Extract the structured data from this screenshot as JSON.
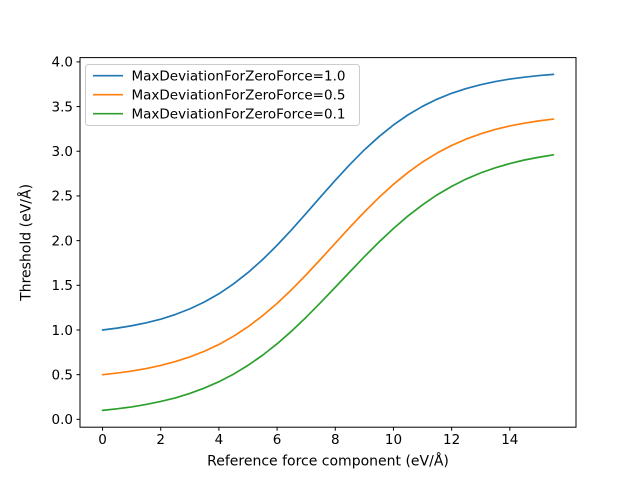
{
  "figure": {
    "background": "#ffffff",
    "spine_color": "#000000",
    "tick_color": "#000000"
  },
  "chart_data": {
    "type": "line",
    "title": "",
    "xlabel": "Reference force component (eV/Å)",
    "ylabel": "Threshold (eV/Å)",
    "xlim": [
      -0.775,
      16.275
    ],
    "ylim": [
      -0.088,
      4.048
    ],
    "grid": false,
    "legend_position": "upper left",
    "x_ticks": {
      "values": [
        0,
        2,
        4,
        6,
        8,
        10,
        12,
        14
      ],
      "labels": [
        "0",
        "2",
        "4",
        "6",
        "8",
        "10",
        "12",
        "14"
      ]
    },
    "y_ticks": {
      "values": [
        0.0,
        0.5,
        1.0,
        1.5,
        2.0,
        2.5,
        3.0,
        3.5,
        4.0
      ],
      "labels": [
        "0.0",
        "0.5",
        "1.0",
        "1.5",
        "2.0",
        "2.5",
        "3.0",
        "3.5",
        "4.0"
      ]
    },
    "x": [
      0,
      0.5,
      1,
      1.5,
      2,
      2.5,
      3,
      3.5,
      4,
      4.5,
      5,
      5.5,
      6,
      6.5,
      7,
      7.5,
      8,
      8.5,
      9,
      9.5,
      10,
      10.5,
      11,
      11.5,
      12,
      12.5,
      13,
      13.5,
      14,
      14.5,
      15,
      15.5
    ],
    "series": [
      {
        "name": "MaxDeviationForZeroForce=1.0",
        "color": "#1f77b4",
        "values": [
          1.0,
          1.021,
          1.047,
          1.08,
          1.121,
          1.173,
          1.236,
          1.313,
          1.405,
          1.515,
          1.642,
          1.787,
          1.948,
          2.122,
          2.305,
          2.491,
          2.675,
          2.851,
          3.016,
          3.163,
          3.294,
          3.407,
          3.503,
          3.583,
          3.649,
          3.702,
          3.745,
          3.78,
          3.808,
          3.829,
          3.847,
          3.86
        ]
      },
      {
        "name": "MaxDeviationForZeroForce=0.5",
        "color": "#ff7f0e",
        "values": [
          0.5,
          0.518,
          0.54,
          0.568,
          0.603,
          0.646,
          0.698,
          0.762,
          0.838,
          0.929,
          1.036,
          1.159,
          1.298,
          1.452,
          1.618,
          1.793,
          1.971,
          2.149,
          2.32,
          2.482,
          2.63,
          2.763,
          2.88,
          2.98,
          3.065,
          3.136,
          3.195,
          3.244,
          3.283,
          3.314,
          3.34,
          3.36
        ]
      },
      {
        "name": "MaxDeviationForZeroForce=0.1",
        "color": "#2ca02c",
        "values": [
          0.1,
          0.118,
          0.139,
          0.167,
          0.2,
          0.24,
          0.29,
          0.35,
          0.421,
          0.505,
          0.604,
          0.717,
          0.845,
          0.988,
          1.143,
          1.308,
          1.478,
          1.65,
          1.82,
          1.983,
          2.136,
          2.276,
          2.401,
          2.512,
          2.607,
          2.689,
          2.758,
          2.815,
          2.862,
          2.902,
          2.933,
          2.96
        ]
      }
    ]
  }
}
